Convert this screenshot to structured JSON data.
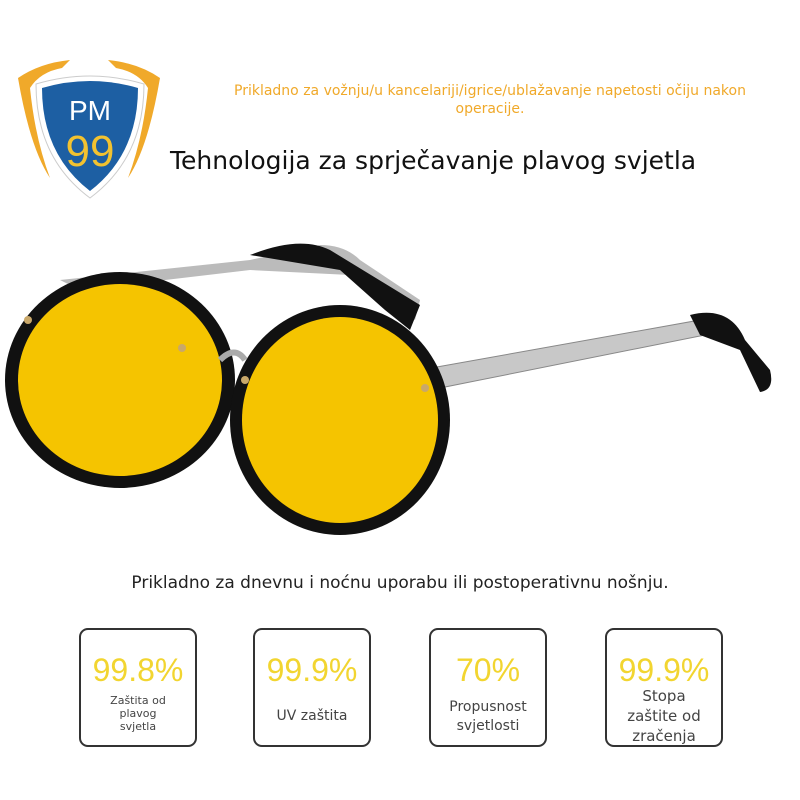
{
  "badge": {
    "top": "PM",
    "bottom": "99",
    "colors": {
      "shield": "#1d5fa3",
      "wings": "#f0a92a",
      "number": "#f2c230"
    }
  },
  "subtitle": "Prikladno za vožnju/u kancelariji/igrice/ublažavanje napetosti očiju nakon operacije.",
  "title": "Tehnologija za sprječavanje plavog svjetla",
  "tagline": "Prikladno za dnevnu i noćnu uporabu ili postoperativnu nošnju.",
  "stats": [
    {
      "value": "99.8%",
      "label": "Zaštita od plavog svjetla"
    },
    {
      "value": "99.9%",
      "label": "UV zaštita"
    },
    {
      "value": "70%",
      "label": "Propusnost svjetlosti"
    },
    {
      "value": "99.9%",
      "label": "Stopa zaštite od zračenja"
    }
  ],
  "colors": {
    "accent": "#f2d530",
    "lens": "#f5c400"
  }
}
